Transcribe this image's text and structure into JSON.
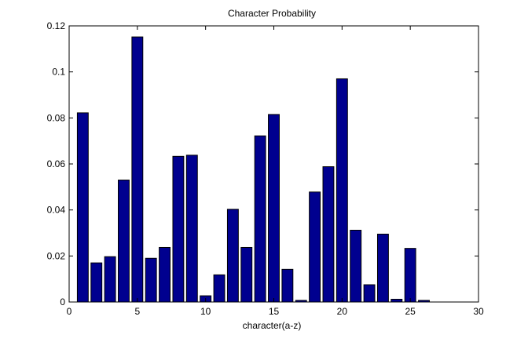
{
  "chart_data": {
    "type": "bar",
    "title": "Character Probability",
    "xlabel": "character(a-z)",
    "ylabel": "",
    "xlim": [
      0,
      30
    ],
    "ylim": [
      0,
      0.12
    ],
    "xticks": [
      0,
      5,
      10,
      15,
      20,
      25,
      30
    ],
    "yticks": [
      0,
      0.02,
      0.04,
      0.06,
      0.08,
      0.1,
      0.12
    ],
    "grid": false,
    "bar_color": "#00008f",
    "x": [
      1,
      2,
      3,
      4,
      5,
      6,
      7,
      8,
      9,
      10,
      11,
      12,
      13,
      14,
      15,
      16,
      17,
      18,
      19,
      20,
      21,
      22,
      23,
      24,
      25,
      26
    ],
    "values": [
      0.0822,
      0.017,
      0.0197,
      0.053,
      0.1152,
      0.019,
      0.0237,
      0.0633,
      0.0638,
      0.0027,
      0.0118,
      0.0403,
      0.0237,
      0.0722,
      0.0815,
      0.0142,
      0.0007,
      0.0478,
      0.0588,
      0.097,
      0.0312,
      0.0075,
      0.0295,
      0.0012,
      0.0233,
      0.0007
    ]
  }
}
